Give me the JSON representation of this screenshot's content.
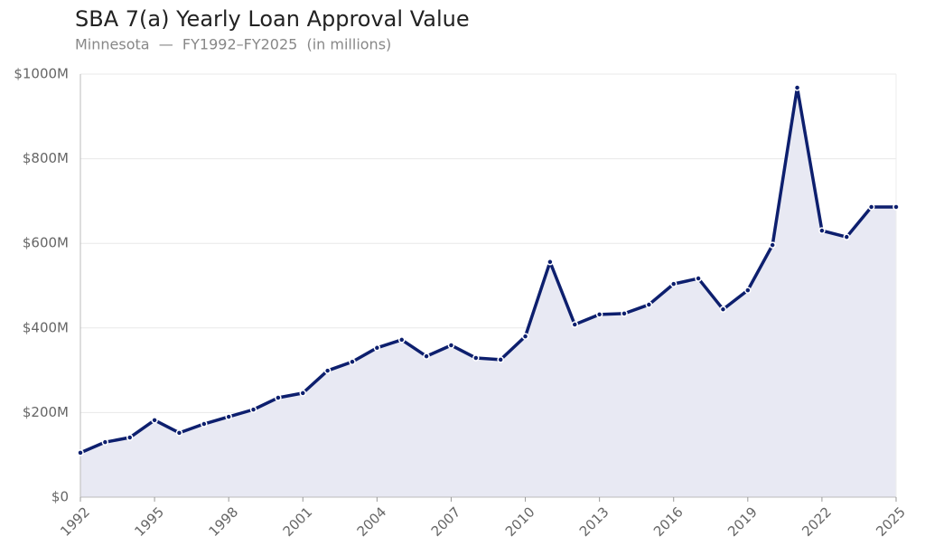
{
  "chart_data": {
    "type": "line",
    "title": "SBA 7(a) Yearly Loan Approval Value",
    "subtitle": "Minnesota  —  FY1992–FY2025  (in millions)",
    "x": [
      1992,
      1993,
      1994,
      1995,
      1996,
      1997,
      1998,
      1999,
      2000,
      2001,
      2002,
      2003,
      2004,
      2005,
      2006,
      2007,
      2008,
      2009,
      2010,
      2011,
      2012,
      2013,
      2014,
      2015,
      2016,
      2017,
      2018,
      2019,
      2020,
      2021,
      2022,
      2023,
      2024,
      2025
    ],
    "values": [
      105,
      130,
      141,
      182,
      152,
      173,
      190,
      207,
      235,
      246,
      299,
      320,
      353,
      372,
      333,
      359,
      329,
      325,
      380,
      556,
      408,
      432,
      434,
      455,
      504,
      517,
      444,
      489,
      596,
      968,
      630,
      615,
      686,
      686
    ],
    "color": "#0d1f6e",
    "fill": "#e8e9f3",
    "xlim": [
      1992,
      2025
    ],
    "xticks": [
      1992,
      1995,
      1998,
      2001,
      2004,
      2007,
      2010,
      2013,
      2016,
      2019,
      2022,
      2025
    ],
    "ylim": [
      0,
      1000
    ],
    "yticks": [
      {
        "value": 0,
        "label": "$0"
      },
      {
        "value": 200,
        "label": "$200M"
      },
      {
        "value": 400,
        "label": "$400M"
      },
      {
        "value": 600,
        "label": "$600M"
      },
      {
        "value": 800,
        "label": "$800M"
      },
      {
        "value": 1000,
        "label": "$1000M"
      }
    ],
    "grid": true
  }
}
